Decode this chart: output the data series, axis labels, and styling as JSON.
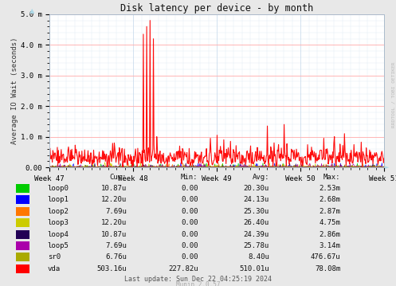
{
  "title": "Disk latency per device - by month",
  "ylabel": "Average IO Wait (seconds)",
  "background_color": "#e8e8e8",
  "plot_bg_color": "#ffffff",
  "grid_color_major": "#ffaaaa",
  "grid_color_minor": "#ccddee",
  "ylim": [
    0.0,
    0.005
  ],
  "yticks": [
    0.0,
    0.001,
    0.002,
    0.003,
    0.004,
    0.005
  ],
  "ytick_labels": [
    "0.00",
    "1.0 m",
    "2.0 m",
    "3.0 m",
    "4.0 m",
    "5.0 m"
  ],
  "xtick_positions": [
    0.0,
    0.25,
    0.5,
    0.75,
    1.0
  ],
  "xtick_labels": [
    "Week 47",
    "Week 48",
    "Week 49",
    "Week 50",
    "Week 51"
  ],
  "series": [
    {
      "name": "loop0",
      "color": "#00cc00",
      "lw": 0.5
    },
    {
      "name": "loop1",
      "color": "#0000ff",
      "lw": 0.5
    },
    {
      "name": "loop2",
      "color": "#ff7700",
      "lw": 0.5
    },
    {
      "name": "loop3",
      "color": "#cccc00",
      "lw": 0.5
    },
    {
      "name": "loop4",
      "color": "#220055",
      "lw": 0.5
    },
    {
      "name": "loop5",
      "color": "#aa00aa",
      "lw": 0.5
    },
    {
      "name": "sr0",
      "color": "#aaaa00",
      "lw": 0.5
    },
    {
      "name": "vda",
      "color": "#ff0000",
      "lw": 0.8
    }
  ],
  "table_headers": [
    "Cur:",
    "Min:",
    "Avg:",
    "Max:"
  ],
  "table_data": [
    [
      "10.87u",
      "0.00",
      "20.30u",
      "2.53m"
    ],
    [
      "12.20u",
      "0.00",
      "24.13u",
      "2.68m"
    ],
    [
      "7.69u",
      "0.00",
      "25.30u",
      "2.87m"
    ],
    [
      "12.20u",
      "0.00",
      "26.40u",
      "4.75m"
    ],
    [
      "10.87u",
      "0.00",
      "24.39u",
      "2.86m"
    ],
    [
      "7.69u",
      "0.00",
      "25.78u",
      "3.14m"
    ],
    [
      "6.76u",
      "0.00",
      "8.40u",
      "476.67u"
    ],
    [
      "503.16u",
      "227.82u",
      "510.01u",
      "78.08m"
    ]
  ],
  "footer": "Last update: Sun Dec 22 04:25:19 2024",
  "munin_version": "Munin 2.0.57",
  "rrdtool_label": "RRDTOOL / TOBI OETIKER",
  "num_points": 600
}
